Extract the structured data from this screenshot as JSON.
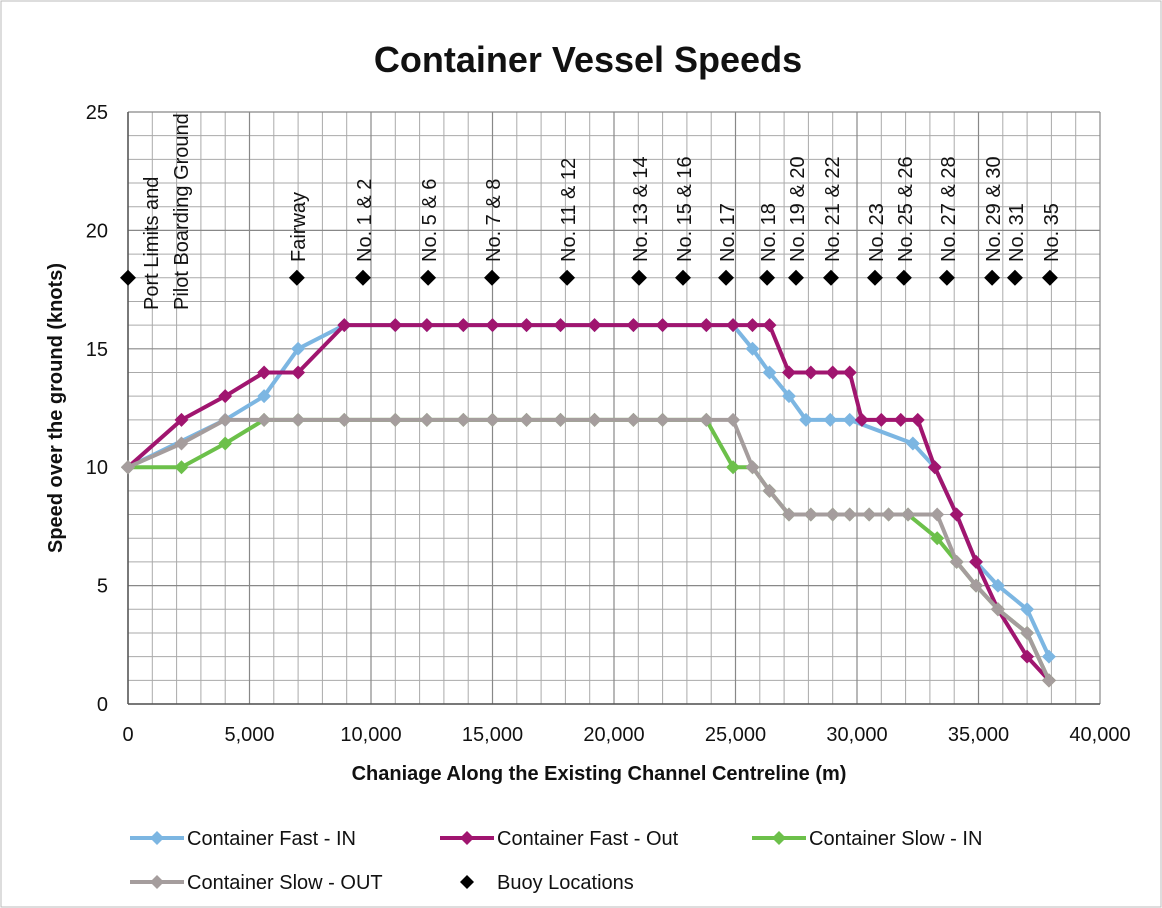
{
  "chart_data": {
    "type": "line",
    "title": "Container Vessel Speeds",
    "x_label": "Chaniage Along the Existing Channel Centreline (m)",
    "y_label": "Speed over the ground (knots)",
    "xlim": [
      0,
      40000
    ],
    "xticks": [
      0,
      {
        "value": 5000,
        "label": "5,000"
      },
      {
        "value": 10000,
        "label": "10,000"
      },
      {
        "value": 15000,
        "label": "15,000"
      },
      {
        "value": 20000,
        "label": "20,000"
      },
      {
        "value": 25000,
        "label": "25,000"
      },
      {
        "value": 30000,
        "label": "30,000"
      },
      {
        "value": 35000,
        "label": "35,000"
      },
      {
        "value": 40000,
        "label": "40,000"
      }
    ],
    "ylim": [
      0,
      25
    ],
    "yticks": [
      0,
      5,
      10,
      15,
      20,
      25
    ],
    "grid": true,
    "legend": "bottom",
    "series": [
      {
        "name": "Container Fast - IN",
        "color": "#7cb6e2",
        "x": [
          0,
          4000,
          5600,
          7000,
          8900,
          11000,
          12300,
          13800,
          15000,
          16400,
          17800,
          19200,
          20800,
          22000,
          23800,
          24900,
          25700,
          26400,
          27200,
          27900,
          28900,
          29700,
          32300,
          33200,
          34100,
          34900,
          35800,
          37000,
          37900
        ],
        "values": [
          10,
          12,
          13,
          15,
          16,
          16,
          16,
          16,
          16,
          16,
          16,
          16,
          16,
          16,
          16,
          16,
          15,
          14,
          13,
          12,
          12,
          12,
          11,
          10,
          8,
          6,
          5,
          4,
          2
        ]
      },
      {
        "name": "Container Fast - Out",
        "color": "#a0156f",
        "x": [
          0,
          2200,
          4000,
          5600,
          7000,
          8900,
          11000,
          12300,
          13800,
          15000,
          16400,
          17800,
          19200,
          20800,
          22000,
          23800,
          24900,
          25700,
          26400,
          27200,
          28100,
          29000,
          29700,
          30200,
          31000,
          31800,
          32500,
          33200,
          34100,
          34900,
          35800,
          37000,
          37900
        ],
        "values": [
          10,
          12,
          13,
          14,
          14,
          16,
          16,
          16,
          16,
          16,
          16,
          16,
          16,
          16,
          16,
          16,
          16,
          16,
          16,
          14,
          14,
          14,
          14,
          12,
          12,
          12,
          12,
          10,
          8,
          6,
          4,
          2,
          1
        ]
      },
      {
        "name": "Container Slow - IN",
        "color": "#6cc04a",
        "x": [
          0,
          2200,
          4000,
          5600,
          7000,
          8900,
          11000,
          12300,
          13800,
          15000,
          16400,
          17800,
          19200,
          20800,
          22000,
          23800,
          24900,
          25700,
          26400,
          27200,
          28100,
          29000,
          29700,
          30500,
          31300,
          32100,
          33300,
          34100,
          34900,
          35800,
          37000,
          37900
        ],
        "values": [
          10,
          10,
          11,
          12,
          12,
          12,
          12,
          12,
          12,
          12,
          12,
          12,
          12,
          12,
          12,
          12,
          10,
          10,
          9,
          8,
          8,
          8,
          8,
          8,
          8,
          8,
          7,
          6,
          5,
          4,
          3,
          1
        ]
      },
      {
        "name": "Container Slow - OUT",
        "color": "#a59d9d",
        "x": [
          0,
          2200,
          4000,
          5600,
          7000,
          8900,
          11000,
          12300,
          13800,
          15000,
          16400,
          17800,
          19200,
          20800,
          22000,
          23800,
          24900,
          25700,
          26400,
          27200,
          28100,
          29000,
          29700,
          30500,
          31300,
          32100,
          33300,
          34100,
          34900,
          35800,
          37000,
          37900
        ],
        "values": [
          10,
          11,
          12,
          12,
          12,
          12,
          12,
          12,
          12,
          12,
          12,
          12,
          12,
          12,
          12,
          12,
          12,
          10,
          9,
          8,
          8,
          8,
          8,
          8,
          8,
          8,
          8,
          6,
          5,
          4,
          3,
          1
        ]
      },
      {
        "name": "Buoy Locations",
        "color": "#000000",
        "type": "scatter",
        "x": [
          0,
          6950,
          9670,
          12350,
          14980,
          18070,
          21030,
          22840,
          24610,
          26300,
          27490,
          28930,
          30740,
          31930,
          33700,
          35560,
          36500,
          37940
        ],
        "values": [
          18,
          18,
          18,
          18,
          18,
          18,
          18,
          18,
          18,
          18,
          18,
          18,
          18,
          18,
          18,
          18,
          18,
          18
        ],
        "labels": [
          [
            "Port Limits and",
            "Pilot Boarding Ground"
          ],
          "Fairway",
          "No. 1 & 2",
          "No. 5 & 6",
          "No. 7 & 8",
          "No. 11 & 12",
          "No. 13 & 14",
          "No. 15 & 16",
          "No. 17",
          "No. 18",
          "No. 19 & 20",
          "No. 21 & 22",
          "No. 23",
          "No. 25 & 26",
          "No. 27 & 28",
          "No. 29 & 30",
          "No. 31",
          "No. 35"
        ]
      }
    ]
  }
}
